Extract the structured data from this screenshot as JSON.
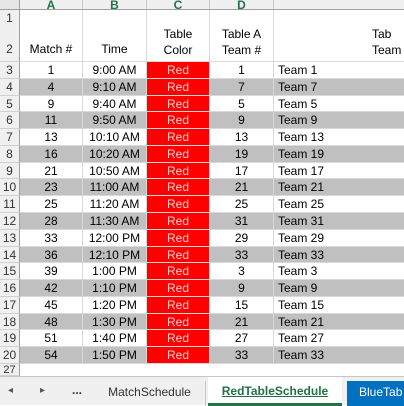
{
  "columns": [
    "A",
    "B",
    "C",
    "D"
  ],
  "header": {
    "match_label": "Match #",
    "time_label": "Time",
    "color_line1": "Table",
    "color_line2": "Color",
    "tablea_line1": "Table A",
    "tablea_line2": "Team #",
    "next_line1": "Tab",
    "next_line2": "Team"
  },
  "row_numbers": [
    "1",
    "2",
    "3",
    "4",
    "5",
    "6",
    "7",
    "8",
    "9",
    "10",
    "11",
    "12",
    "13",
    "14",
    "15",
    "16",
    "17",
    "18",
    "19",
    "20",
    "27"
  ],
  "rows": [
    {
      "match": "1",
      "time": "9:00 AM",
      "color": "Red",
      "team_num": "1",
      "team": "Team 1"
    },
    {
      "match": "4",
      "time": "9:10 AM",
      "color": "Red",
      "team_num": "7",
      "team": "Team 7"
    },
    {
      "match": "9",
      "time": "9:40 AM",
      "color": "Red",
      "team_num": "5",
      "team": "Team 5"
    },
    {
      "match": "11",
      "time": "9:50 AM",
      "color": "Red",
      "team_num": "9",
      "team": "Team 9"
    },
    {
      "match": "13",
      "time": "10:10 AM",
      "color": "Red",
      "team_num": "13",
      "team": "Team 13"
    },
    {
      "match": "16",
      "time": "10:20 AM",
      "color": "Red",
      "team_num": "19",
      "team": "Team 19"
    },
    {
      "match": "21",
      "time": "10:50 AM",
      "color": "Red",
      "team_num": "17",
      "team": "Team 17"
    },
    {
      "match": "23",
      "time": "11:00 AM",
      "color": "Red",
      "team_num": "21",
      "team": "Team 21"
    },
    {
      "match": "25",
      "time": "11:20 AM",
      "color": "Red",
      "team_num": "25",
      "team": "Team 25"
    },
    {
      "match": "28",
      "time": "11:30 AM",
      "color": "Red",
      "team_num": "31",
      "team": "Team 31"
    },
    {
      "match": "33",
      "time": "12:00 PM",
      "color": "Red",
      "team_num": "29",
      "team": "Team 29"
    },
    {
      "match": "36",
      "time": "12:10 PM",
      "color": "Red",
      "team_num": "33",
      "team": "Team 33"
    },
    {
      "match": "39",
      "time": "1:00 PM",
      "color": "Red",
      "team_num": "3",
      "team": "Team 3"
    },
    {
      "match": "42",
      "time": "1:10 PM",
      "color": "Red",
      "team_num": "9",
      "team": "Team 9"
    },
    {
      "match": "45",
      "time": "1:20 PM",
      "color": "Red",
      "team_num": "15",
      "team": "Team 15"
    },
    {
      "match": "48",
      "time": "1:30 PM",
      "color": "Red",
      "team_num": "21",
      "team": "Team 21"
    },
    {
      "match": "51",
      "time": "1:40 PM",
      "color": "Red",
      "team_num": "27",
      "team": "Team 27"
    },
    {
      "match": "54",
      "time": "1:50 PM",
      "color": "Red",
      "team_num": "33",
      "team": "Team 33"
    }
  ],
  "tabs": {
    "nav_prev": "◂",
    "nav_next": "▸",
    "more": "...",
    "sheet1": "MatchSchedule",
    "sheet2": "RedTableSchedule",
    "sheet3": "BlueTab"
  },
  "colors": {
    "column_header_text": "#217346",
    "red_fill": "#ff0000",
    "shaded_row": "#c0c0c0",
    "active_tab_text": "#217346",
    "blue_tab": "#0070c0"
  }
}
